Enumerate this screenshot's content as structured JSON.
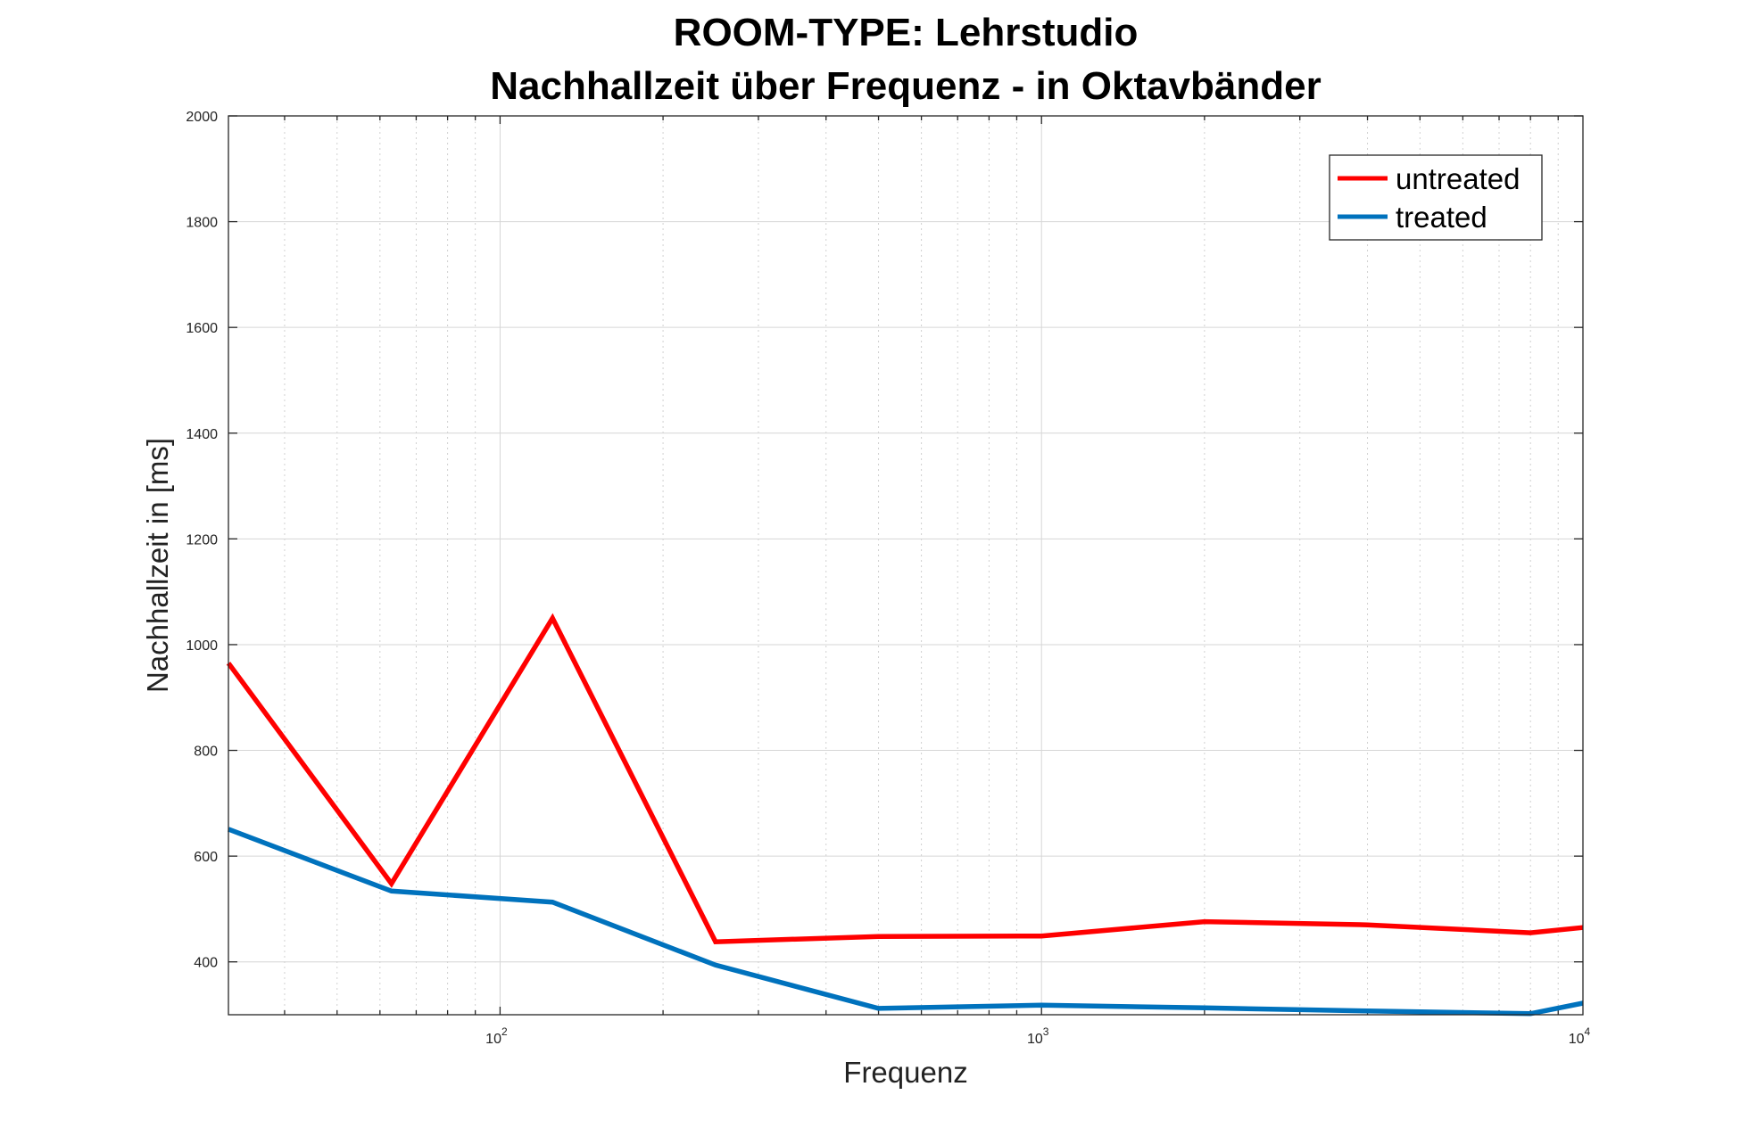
{
  "chart_data": {
    "type": "line",
    "title_lines": [
      "ROOM-TYPE: Lehrstudio",
      "Nachhallzeit über Frequenz - in Oktavbänder"
    ],
    "xlabel": "Frequenz",
    "ylabel": "Nachhallzeit in [ms]",
    "x_scale": "log",
    "xlim": [
      31.5,
      10000
    ],
    "ylim": [
      300,
      2000
    ],
    "x": [
      31.5,
      63,
      125,
      250,
      500,
      1000,
      2000,
      4000,
      8000,
      10000
    ],
    "y_ticks": [
      400,
      600,
      800,
      1000,
      1200,
      1400,
      1600,
      1800,
      2000
    ],
    "x_tick_labels": [
      {
        "value": 100,
        "base": "10",
        "exponent": "2"
      },
      {
        "value": 1000,
        "base": "10",
        "exponent": "3"
      },
      {
        "value": 10000,
        "base": "10",
        "exponent": "4"
      }
    ],
    "grid": true,
    "legend_position": "top-right",
    "series": [
      {
        "name": "untreated",
        "color": "#ff0000",
        "values": [
          965,
          548,
          1050,
          438,
          448,
          449,
          476,
          470,
          455,
          465
        ]
      },
      {
        "name": "treated",
        "color": "#0072bd",
        "values": [
          651,
          534,
          513,
          394,
          312,
          318,
          313,
          307,
          302,
          322
        ]
      }
    ]
  }
}
